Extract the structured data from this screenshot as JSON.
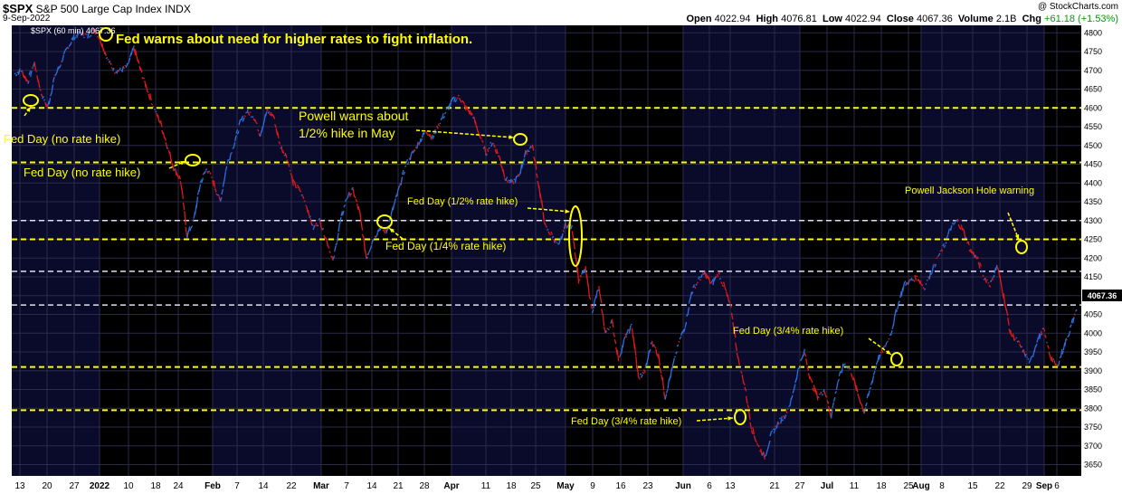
{
  "header": {
    "symbol": "$SPX",
    "name": "S&P 500 Large Cap Index",
    "exchange": "INDX",
    "date": "9-Sep-2022",
    "watermark": "@ StockCharts.com",
    "open_label": "Open",
    "open": "4022.94",
    "high_label": "High",
    "high": "4076.81",
    "low_label": "Low",
    "low": "4022.94",
    "close_label": "Close",
    "close": "4067.36",
    "volume_label": "Volume",
    "volume": "2.1B",
    "chg_label": "Chg",
    "chg": "+61.18 (+1.53%)"
  },
  "legend": {
    "label": "$SPX (60 min) 4067.36"
  },
  "last_price_label": "4067.36",
  "colors": {
    "up": "#2a6fe0",
    "down": "#e01818",
    "yellow": "#ffff00",
    "white_lines": "#e0e0f0",
    "bg": "#000000",
    "band": "#0a0a2a"
  },
  "chart_data": {
    "type": "line",
    "title": "",
    "ylim": [
      3620,
      4820
    ],
    "y_ticks": [
      3650,
      3700,
      3750,
      3800,
      3850,
      3900,
      3950,
      4000,
      4050,
      4100,
      4150,
      4200,
      4250,
      4300,
      4350,
      4400,
      4450,
      4500,
      4550,
      4600,
      4650,
      4700,
      4750,
      4800
    ],
    "x_ticks": [
      "13",
      "20",
      "27",
      "2022",
      "10",
      "18",
      "24",
      "Feb",
      "7",
      "14",
      "22",
      "Mar",
      "7",
      "14",
      "21",
      "28",
      "Apr",
      "11",
      "18",
      "25",
      "May",
      "9",
      "16",
      "23",
      "Jun",
      "6",
      "13",
      "21",
      "27",
      "Jul",
      "11",
      "18",
      "25",
      "Aug",
      "8",
      "15",
      "22",
      "29",
      "Sep",
      "6"
    ],
    "series": [
      {
        "values": [
          4690,
          4700,
          4670,
          4720,
          4640,
          4600,
          4680,
          4720,
          4760,
          4790,
          4800,
          4790,
          4810,
          4780,
          4730,
          4700,
          4700,
          4710,
          4760,
          4700,
          4650,
          4600,
          4560,
          4500,
          4440,
          4410,
          4260,
          4300,
          4400,
          4440,
          4400,
          4350,
          4450,
          4500,
          4560,
          4590,
          4580,
          4530,
          4590,
          4580,
          4500,
          4470,
          4400,
          4380,
          4340,
          4280,
          4300,
          4250,
          4190,
          4290,
          4360,
          4380,
          4320,
          4200,
          4250,
          4280,
          4270,
          4330,
          4390,
          4450,
          4480,
          4510,
          4540,
          4520,
          4560,
          4590,
          4620,
          4630,
          4600,
          4580,
          4530,
          4480,
          4510,
          4470,
          4410,
          4400,
          4420,
          4480,
          4500,
          4390,
          4280,
          4260,
          4230,
          4290,
          4280,
          4140,
          4170,
          4060,
          4120,
          4000,
          4030,
          3930,
          3990,
          4020,
          3880,
          3900,
          3980,
          3940,
          3830,
          3900,
          3970,
          4020,
          4110,
          4140,
          4160,
          4130,
          4160,
          4120,
          4060,
          3930,
          3860,
          3750,
          3700,
          3670,
          3730,
          3760,
          3780,
          3820,
          3900,
          3950,
          3870,
          3830,
          3850,
          3780,
          3870,
          3920,
          3900,
          3840,
          3790,
          3860,
          3930,
          3960,
          4000,
          4070,
          4130,
          4140,
          4150,
          4120,
          4160,
          4200,
          4230,
          4280,
          4300,
          4270,
          4220,
          4200,
          4150,
          4130,
          4180,
          4100,
          4000,
          3980,
          3950,
          3920,
          3980,
          4010,
          3940,
          3910,
          3960,
          4010,
          4067
        ]
      },
      {
        "name": "Fed Day (no rate hike)",
        "values": [
          4600
        ]
      },
      {
        "name": "Fed Day (no rate hike)",
        "values": [
          4440
        ]
      },
      {
        "name": "Powell warns about 1/2% hike in May",
        "values": [
          4500
        ]
      },
      {
        "name": "Fed Day (1/4% rate hike)",
        "values": [
          4270
        ]
      },
      {
        "name": "Fed Day (1/2% rate hike)",
        "values": [
          4300
        ]
      },
      {
        "name": "Fed Day (3/4% rate hike)",
        "values": [
          3770
        ]
      },
      {
        "name": "Fed Day (3/4% rate hike)",
        "values": [
          3910
        ]
      },
      {
        "name": "Powell Jackson Hole warning",
        "values": [
          4200
        ]
      }
    ],
    "yellow_levels": [
      4600,
      4455,
      4250,
      3910,
      3795
    ],
    "white_levels": [
      4300,
      4165,
      4075
    ],
    "annotations": [
      {
        "text": "Fed warns about need for higher rates to fight inflation."
      },
      {
        "text": "Fed Day (no rate hike)"
      },
      {
        "text": "Fed Day (no rate hike)"
      },
      {
        "text": "Powell warns about"
      },
      {
        "text": "1/2% hike in May"
      },
      {
        "text": "Fed Day (1/2% rate hike)"
      },
      {
        "text": "Fed Day (1/4% rate hike)"
      },
      {
        "text": "Fed Day (3/4% rate hike)"
      },
      {
        "text": "Fed Day (3/4% rate hike)"
      },
      {
        "text": "Powell Jackson Hole warning"
      }
    ]
  }
}
